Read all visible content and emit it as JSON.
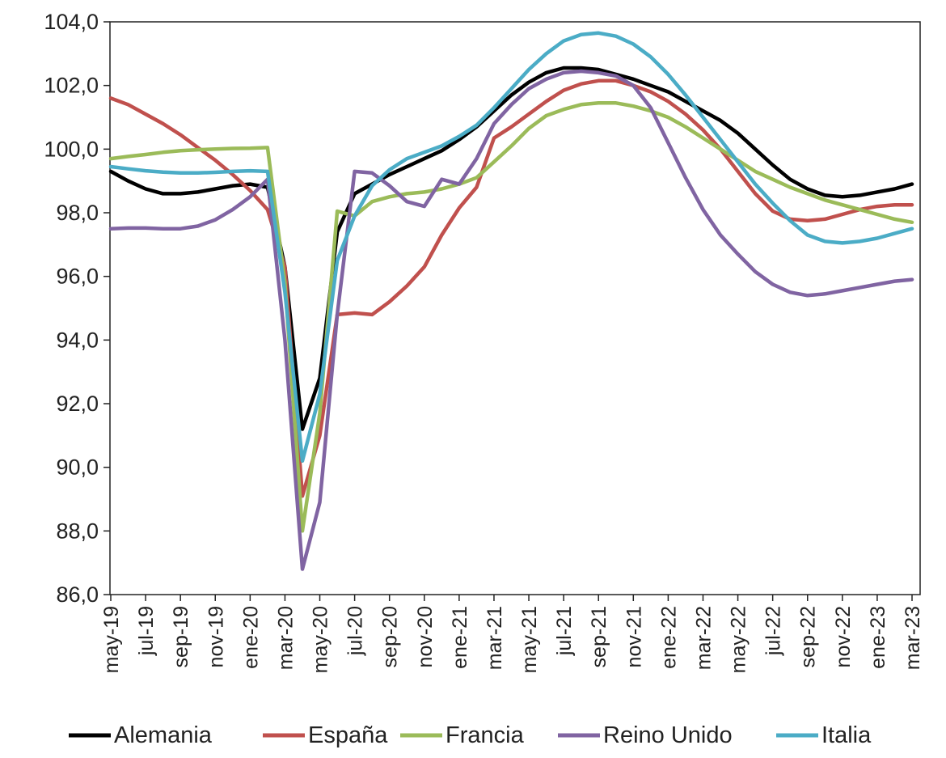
{
  "chart_data": {
    "type": "line",
    "title": "",
    "xlabel": "",
    "ylabel": "",
    "ylim": [
      86,
      104
    ],
    "y_ticks": [
      "86,0",
      "88,0",
      "90,0",
      "92,0",
      "94,0",
      "96,0",
      "98,0",
      "100,0",
      "102,0",
      "104,0"
    ],
    "grid": false,
    "legend_position": "bottom",
    "x": [
      "may-19",
      "jun-19",
      "jul-19",
      "ago-19",
      "sep-19",
      "oct-19",
      "nov-19",
      "dic-19",
      "ene-20",
      "feb-20",
      "mar-20",
      "abr-20",
      "may-20",
      "jun-20",
      "jul-20",
      "ago-20",
      "sep-20",
      "oct-20",
      "nov-20",
      "dic-20",
      "ene-21",
      "feb-21",
      "mar-21",
      "abr-21",
      "may-21",
      "jun-21",
      "jul-21",
      "ago-21",
      "sep-21",
      "oct-21",
      "nov-21",
      "dic-21",
      "ene-22",
      "feb-22",
      "mar-22",
      "abr-22",
      "may-22",
      "jun-22",
      "jul-22",
      "ago-22",
      "sep-22",
      "oct-22",
      "nov-22",
      "dic-22",
      "ene-23",
      "feb-23",
      "mar-23"
    ],
    "x_tick_labels": [
      "may-19",
      "jul-19",
      "sep-19",
      "nov-19",
      "ene-20",
      "mar-20",
      "may-20",
      "jul-20",
      "sep-20",
      "nov-20",
      "ene-21",
      "mar-21",
      "may-21",
      "jul-21",
      "sep-21",
      "nov-21",
      "ene-22",
      "mar-22",
      "may-22",
      "jul-22",
      "sep-22",
      "nov-22",
      "ene-23",
      "mar-23"
    ],
    "series": [
      {
        "name": "Alemania",
        "color": "#000000",
        "values": [
          99.3,
          99.0,
          98.75,
          98.6,
          98.6,
          98.65,
          98.75,
          98.85,
          98.9,
          98.8,
          96.3,
          91.2,
          92.8,
          97.4,
          98.6,
          98.9,
          99.2,
          99.45,
          99.7,
          99.95,
          100.3,
          100.7,
          101.2,
          101.7,
          102.1,
          102.4,
          102.55,
          102.55,
          102.5,
          102.35,
          102.2,
          102.0,
          101.8,
          101.5,
          101.2,
          100.9,
          100.5,
          100.0,
          99.5,
          99.05,
          98.75,
          98.55,
          98.5,
          98.55,
          98.65,
          98.75,
          98.9
        ]
      },
      {
        "name": "España",
        "color": "#c0504d",
        "values": [
          101.6,
          101.4,
          101.1,
          100.8,
          100.45,
          100.05,
          99.65,
          99.2,
          98.7,
          98.1,
          96.3,
          89.1,
          91.0,
          94.8,
          94.85,
          94.8,
          95.2,
          95.7,
          96.3,
          97.3,
          98.15,
          98.8,
          100.35,
          100.7,
          101.1,
          101.5,
          101.85,
          102.05,
          102.15,
          102.15,
          102.0,
          101.8,
          101.5,
          101.1,
          100.6,
          100.0,
          99.3,
          98.6,
          98.05,
          97.8,
          97.75,
          97.8,
          97.95,
          98.1,
          98.2,
          98.25,
          98.25
        ]
      },
      {
        "name": "Francia",
        "color": "#9bbb59",
        "values": [
          99.7,
          99.77,
          99.83,
          99.9,
          99.95,
          99.98,
          100.0,
          100.02,
          100.03,
          100.05,
          95.8,
          88.0,
          91.7,
          98.05,
          97.9,
          98.35,
          98.5,
          98.6,
          98.65,
          98.75,
          98.9,
          99.1,
          99.6,
          100.1,
          100.65,
          101.05,
          101.25,
          101.4,
          101.45,
          101.45,
          101.35,
          101.2,
          101.0,
          100.7,
          100.35,
          100.0,
          99.65,
          99.3,
          99.05,
          98.8,
          98.6,
          98.4,
          98.25,
          98.1,
          97.95,
          97.8,
          97.7
        ]
      },
      {
        "name": "Reino Unido",
        "color": "#8064a2",
        "values": [
          97.5,
          97.52,
          97.52,
          97.5,
          97.5,
          97.58,
          97.78,
          98.1,
          98.5,
          99.05,
          94.0,
          86.8,
          88.9,
          94.8,
          99.3,
          99.25,
          98.85,
          98.35,
          98.2,
          99.05,
          98.9,
          99.7,
          100.8,
          101.4,
          101.9,
          102.2,
          102.4,
          102.45,
          102.4,
          102.3,
          102.0,
          101.3,
          100.2,
          99.1,
          98.1,
          97.3,
          96.7,
          96.15,
          95.75,
          95.5,
          95.4,
          95.45,
          95.55,
          95.65,
          95.75,
          95.85,
          95.9
        ]
      },
      {
        "name": "Italia",
        "color": "#4bacc6",
        "values": [
          99.45,
          99.38,
          99.32,
          99.28,
          99.25,
          99.25,
          99.27,
          99.3,
          99.32,
          99.3,
          95.5,
          90.2,
          92.3,
          96.5,
          97.9,
          98.85,
          99.35,
          99.7,
          99.9,
          100.1,
          100.4,
          100.75,
          101.3,
          101.9,
          102.5,
          103.0,
          103.4,
          103.6,
          103.65,
          103.55,
          103.3,
          102.9,
          102.35,
          101.7,
          101.0,
          100.3,
          99.6,
          98.9,
          98.3,
          97.75,
          97.3,
          97.1,
          97.05,
          97.1,
          97.2,
          97.35,
          97.5
        ]
      }
    ]
  }
}
